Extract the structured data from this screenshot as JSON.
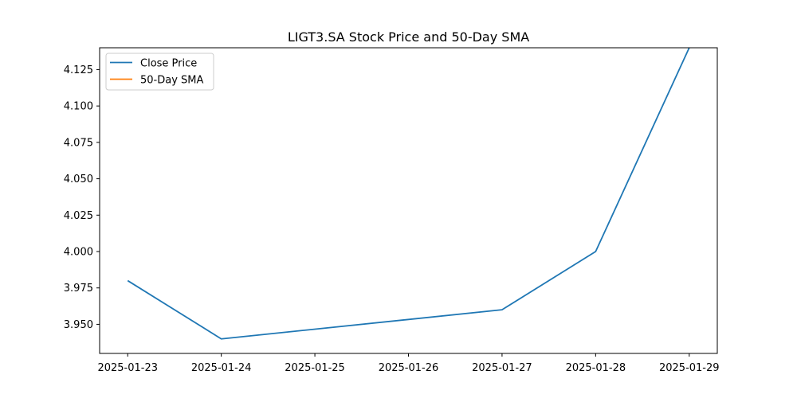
{
  "chart_data": {
    "type": "line",
    "title": "LIGT3.SA Stock Price and 50-Day SMA",
    "xlabel": "",
    "ylabel": "",
    "x_ticks": [
      "2025-01-23",
      "2025-01-24",
      "2025-01-25",
      "2025-01-26",
      "2025-01-27",
      "2025-01-28",
      "2025-01-29"
    ],
    "y_ticks": [
      "3.950",
      "3.975",
      "4.000",
      "4.025",
      "4.050",
      "4.075",
      "4.100",
      "4.125"
    ],
    "xlim": [
      "2025-01-23",
      "2025-01-29"
    ],
    "ylim": [
      3.93,
      4.14
    ],
    "grid": false,
    "legend_position": "upper left",
    "series": [
      {
        "name": "Close Price",
        "color": "#1f77b4",
        "x": [
          "2025-01-23",
          "2025-01-24",
          "2025-01-27",
          "2025-01-28",
          "2025-01-29"
        ],
        "values": [
          3.98,
          3.94,
          3.96,
          4.0,
          4.14
        ]
      },
      {
        "name": "50-Day SMA",
        "color": "#ff7f0e",
        "x": [],
        "values": []
      }
    ]
  }
}
